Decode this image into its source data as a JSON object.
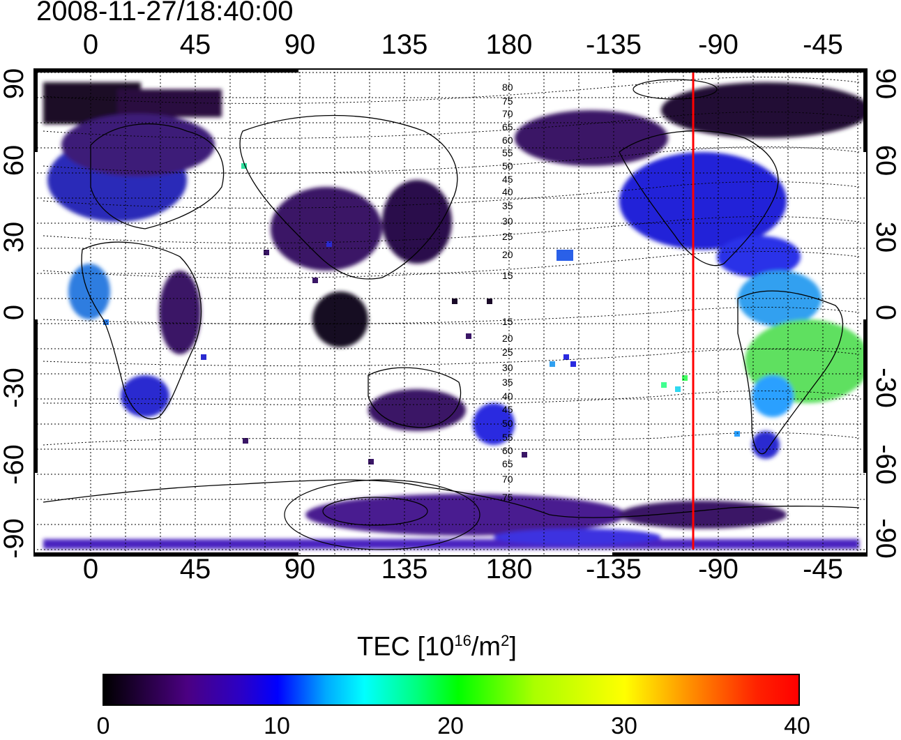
{
  "title": "2008-11-27/18:40:00",
  "lon_ticks": [
    "0",
    "45",
    "90",
    "135",
    "180",
    "-135",
    "-90",
    "-45"
  ],
  "lat_ticks": [
    "90",
    "60",
    "30",
    "0",
    "-30",
    "-60",
    "-90"
  ],
  "contour_labels_north": [
    "80",
    "75",
    "70",
    "65",
    "60",
    "55",
    "50",
    "45",
    "40",
    "35",
    "30",
    "25",
    "20",
    "15"
  ],
  "contour_labels_south": [
    "15",
    "20",
    "25",
    "30",
    "35",
    "40",
    "45",
    "50",
    "55",
    "60",
    "65",
    "70",
    "75"
  ],
  "colorbar": {
    "title_main": "TEC  [10",
    "title_sup1": "16",
    "title_mid": "/m",
    "title_sup2": "2",
    "title_end": "]",
    "ticks": [
      "0",
      "10",
      "20",
      "30",
      "40"
    ],
    "range": [
      0,
      40
    ]
  },
  "terminator_longitude": -100,
  "colors": {
    "terminator": "#ff0000",
    "low_tec": "#3c1870",
    "mid_tec": "#2a2ae0",
    "high_tec": "#40ff40"
  }
}
